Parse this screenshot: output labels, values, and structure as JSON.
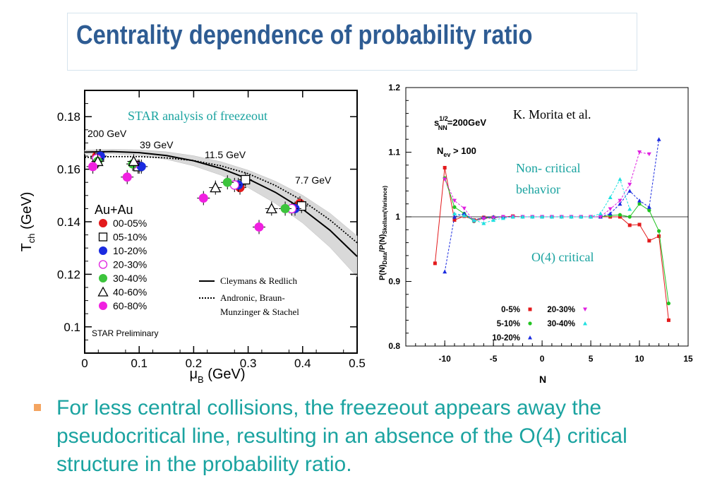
{
  "title": "Centrality dependence of probability ratio",
  "bullet": "For less central collisions, the freezeout appears away the pseudocritical line, resulting in an absence  of the O(4) critical structure  in the probability ratio.",
  "chart_data": [
    {
      "type": "scatter",
      "title": "STAR analysis of freezeout",
      "xlabel": "μB (GeV)",
      "ylabel": "Tch (GeV)",
      "xlim": [
        0,
        0.5
      ],
      "ylim": [
        0.09,
        0.19
      ],
      "x_ticks": [
        "0",
        "0.1",
        "0.2",
        "0.3",
        "0.4",
        "0.5"
      ],
      "y_ticks": [
        "0.1",
        "0.12",
        "0.14",
        "0.16",
        "0.18"
      ],
      "energy_labels": [
        "200 GeV",
        "39 GeV",
        "11.5 GeV",
        "7.7 GeV"
      ],
      "system_label": "Au+Au",
      "preliminary_label": "STAR Preliminary",
      "legend": [
        {
          "name": "00-05%",
          "color": "#e31a1c",
          "marker": "circle-filled"
        },
        {
          "name": "05-10%",
          "color": "#000000",
          "marker": "square-open"
        },
        {
          "name": "10-20%",
          "color": "#1a2be0",
          "marker": "circle-filled"
        },
        {
          "name": "20-30%",
          "color": "#e020e0",
          "marker": "circle-open"
        },
        {
          "name": "30-40%",
          "color": "#3cc43c",
          "marker": "circle-filled"
        },
        {
          "name": "40-60%",
          "color": "#000000",
          "marker": "triangle-open"
        },
        {
          "name": "60-80%",
          "color": "#f020e0",
          "marker": "circle-filled"
        }
      ],
      "curves": [
        {
          "name": "Cleymans & Redlich",
          "style": "solid",
          "x": [
            0,
            0.05,
            0.1,
            0.15,
            0.2,
            0.25,
            0.3,
            0.35,
            0.4,
            0.45,
            0.5
          ],
          "y": [
            0.1665,
            0.1667,
            0.1663,
            0.1652,
            0.1632,
            0.1603,
            0.1563,
            0.1512,
            0.1448,
            0.1368,
            0.1268
          ]
        },
        {
          "name": "Andronic, Braun-Munzinger & Stachel",
          "style": "dotted",
          "x": [
            0,
            0.05,
            0.1,
            0.15,
            0.2,
            0.25,
            0.3,
            0.35,
            0.4,
            0.45,
            0.5
          ],
          "y": [
            0.1645,
            0.1648,
            0.1648,
            0.1643,
            0.1633,
            0.1613,
            0.1583,
            0.1538,
            0.148,
            0.1407,
            0.132
          ]
        }
      ],
      "series": [
        {
          "name": "00-05%",
          "x": [
            0.022,
            0.1,
            0.285,
            0.395
          ],
          "y": [
            0.165,
            0.161,
            0.153,
            0.147
          ]
        },
        {
          "name": "05-10%",
          "x": [
            0.027,
            0.098,
            0.295,
            0.398
          ],
          "y": [
            0.165,
            0.161,
            0.156,
            0.146
          ]
        },
        {
          "name": "10-20%",
          "x": [
            0.029,
            0.104,
            0.282,
            0.386
          ],
          "y": [
            0.165,
            0.161,
            0.154,
            0.145
          ]
        },
        {
          "name": "20-30%",
          "x": [
            0.022,
            0.09,
            0.275,
            0.38
          ],
          "y": [
            0.164,
            0.162,
            0.154,
            0.145
          ]
        },
        {
          "name": "30-40%",
          "x": [
            0.024,
            0.088,
            0.262,
            0.368
          ],
          "y": [
            0.163,
            0.162,
            0.155,
            0.145
          ]
        },
        {
          "name": "40-60%",
          "x": [
            0.024,
            0.09,
            0.24,
            0.343
          ],
          "y": [
            0.163,
            0.163,
            0.153,
            0.145
          ]
        },
        {
          "name": "60-80%",
          "x": [
            0.015,
            0.078,
            0.218,
            0.32
          ],
          "y": [
            0.161,
            0.157,
            0.149,
            0.138
          ]
        }
      ],
      "curve_legend": [
        "Cleymans & Redlich",
        "Andronic, Braun-",
        "Munzinger & Stachel"
      ]
    },
    {
      "type": "line",
      "xlabel": "N",
      "xlim": [
        -14,
        15
      ],
      "ylim": [
        0.8,
        1.2
      ],
      "x_ticks": [
        "-10",
        "-5",
        "0",
        "5",
        "10",
        "15"
      ],
      "y_ticks": [
        "0.8",
        "0.9",
        "1",
        "1.1",
        "1.2"
      ],
      "reference_line": 1,
      "annotations": [
        "K. Morita et al.",
        "Non- critical",
        "behavior",
        "O(4) critical"
      ],
      "series": [
        {
          "name": "0-5%",
          "color": "#e31a1c",
          "marker": "square",
          "dash": false,
          "x": [
            -11,
            -10,
            -9,
            -8,
            -7,
            -6,
            -5,
            -4,
            -3,
            -2,
            -1,
            0,
            1,
            2,
            3,
            4,
            5,
            6,
            7,
            8,
            9,
            10,
            11,
            12,
            13
          ],
          "y": [
            0.928,
            1.076,
            0.995,
            1.001,
            0.995,
            0.999,
            0.999,
            1.0,
            1.001,
            1.0,
            1.0,
            1.0,
            1.0,
            1.0,
            1.0,
            1.0,
            1.0,
            1.0,
            1.0,
            1.0,
            0.987,
            0.988,
            0.963,
            0.97,
            0.84
          ]
        },
        {
          "name": "5-10%",
          "color": "#22c422",
          "marker": "circle",
          "dash": false,
          "x": [
            -10,
            -9,
            -8,
            -7,
            -6,
            -5,
            -4,
            -3,
            -2,
            -1,
            0,
            1,
            2,
            3,
            4,
            5,
            6,
            7,
            8,
            9,
            10,
            11,
            12,
            13
          ],
          "y": [
            1.06,
            1.015,
            1.005,
            0.993,
            0.998,
            0.999,
            1.0,
            1.0,
            1.0,
            1.0,
            1.0,
            1.0,
            1.0,
            1.0,
            1.0,
            1.0,
            1.0,
            1.002,
            1.003,
            1.0,
            1.02,
            1.01,
            0.978,
            0.866
          ]
        },
        {
          "name": "10-20%",
          "color": "#1a2be0",
          "marker": "triangle",
          "dash": true,
          "x": [
            -10,
            -9,
            -8,
            -7,
            -6,
            -5,
            -4,
            -3,
            -2,
            -1,
            0,
            1,
            2,
            3,
            4,
            5,
            6,
            7,
            8,
            9,
            10,
            11,
            12
          ],
          "y": [
            0.915,
            1.0,
            1.005,
            0.995,
            0.999,
            1.0,
            1.0,
            1.0,
            1.0,
            1.0,
            1.0,
            1.0,
            1.0,
            1.0,
            1.0,
            1.0,
            1.0,
            1.005,
            1.02,
            1.04,
            1.025,
            1.015,
            1.12
          ]
        },
        {
          "name": "20-30%",
          "color": "#e020e0",
          "marker": "triangle-down",
          "dash": true,
          "x": [
            -10,
            -9,
            -8,
            -7,
            -6,
            -5,
            -4,
            -3,
            -2,
            -1,
            0,
            1,
            2,
            3,
            4,
            5,
            6,
            7,
            8,
            9,
            10,
            11
          ],
          "y": [
            1.058,
            1.025,
            1.013,
            0.993,
            0.997,
            0.998,
            1.0,
            1.0,
            1.0,
            1.0,
            1.0,
            1.0,
            1.0,
            1.0,
            1.0,
            1.0,
            1.0,
            1.012,
            1.025,
            1.05,
            1.1,
            1.097
          ]
        },
        {
          "name": "30-40%",
          "color": "#20e0e0",
          "marker": "triangle",
          "dash": true,
          "x": [
            -9,
            -8,
            -7,
            -6,
            -5,
            -4,
            -3,
            -2,
            -1,
            0,
            1,
            2,
            3,
            4,
            5,
            6,
            7,
            8,
            9
          ],
          "y": [
            1.005,
            1.002,
            0.995,
            0.99,
            0.995,
            0.998,
            1.0,
            1.0,
            1.0,
            1.0,
            1.0,
            1.0,
            1.0,
            1.0,
            1.0,
            1.005,
            1.03,
            1.058,
            1.012
          ]
        }
      ],
      "legend": [
        "0-5%",
        "5-10%",
        "10-20%",
        "20-30%",
        "30-40%"
      ]
    }
  ]
}
